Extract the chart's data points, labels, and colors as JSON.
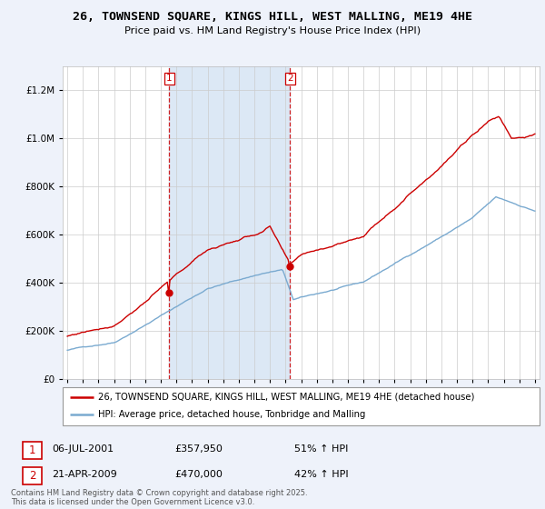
{
  "title": "26, TOWNSEND SQUARE, KINGS HILL, WEST MALLING, ME19 4HE",
  "subtitle": "Price paid vs. HM Land Registry's House Price Index (HPI)",
  "legend_label_red": "26, TOWNSEND SQUARE, KINGS HILL, WEST MALLING, ME19 4HE (detached house)",
  "legend_label_blue": "HPI: Average price, detached house, Tonbridge and Malling",
  "sale1_date": "06-JUL-2001",
  "sale1_price": 357950,
  "sale1_label": "1",
  "sale1_hpi": "51% ↑ HPI",
  "sale2_date": "21-APR-2009",
  "sale2_price": 470000,
  "sale2_label": "2",
  "sale2_hpi": "42% ↑ HPI",
  "footer": "Contains HM Land Registry data © Crown copyright and database right 2025.\nThis data is licensed under the Open Government Licence v3.0.",
  "bg_color": "#eef2fa",
  "plot_bg_color": "#ffffff",
  "red_color": "#cc0000",
  "blue_color": "#7aaad0",
  "shade_color": "#dce8f5",
  "ylim_min": 0,
  "ylim_max": 1300000,
  "xlim_min": 1994.7,
  "xlim_max": 2025.3,
  "sale1_year": 2001.54,
  "sale2_year": 2009.29
}
